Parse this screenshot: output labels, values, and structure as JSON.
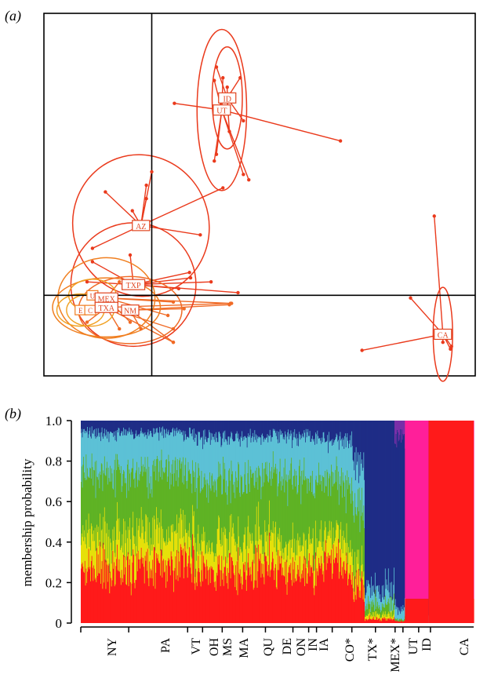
{
  "chart_data": [
    {
      "type": "scatter",
      "panel_label": "(a)",
      "xlim": [
        -1.0,
        3.0
      ],
      "ylim": [
        -0.6,
        2.1
      ],
      "grid": false,
      "axis_lines": {
        "x": 0,
        "y": 0
      },
      "group_color": "#ea3a1c",
      "groups": [
        {
          "name": "ID",
          "center": [
            0.7,
            1.47
          ],
          "ellipse": {
            "rx": 0.14,
            "ry": 0.38,
            "angle": 0
          },
          "points": [
            [
              0.6,
              1.7
            ],
            [
              0.82,
              1.62
            ],
            [
              0.7,
              1.55
            ],
            [
              0.58,
              1.38
            ],
            [
              0.85,
              1.3
            ],
            [
              0.72,
              1.22
            ]
          ]
        },
        {
          "name": "UT",
          "center": [
            0.65,
            1.38
          ],
          "ellipse": {
            "rx": 0.23,
            "ry": 0.6,
            "angle": 0
          },
          "points": [
            [
              0.21,
              1.43
            ],
            [
              0.58,
              1.6
            ],
            [
              0.66,
              1.62
            ],
            [
              1.75,
              1.15
            ],
            [
              0.58,
              1.0
            ],
            [
              0.85,
              0.9
            ],
            [
              0.9,
              0.86
            ],
            [
              0.6,
              1.05
            ]
          ]
        },
        {
          "name": "AZ",
          "center": [
            -0.1,
            0.52
          ],
          "ellipse": {
            "rx": 0.63,
            "ry": 0.53,
            "angle": -20
          },
          "points": [
            [
              -0.43,
              0.77
            ],
            [
              -0.05,
              0.82
            ],
            [
              -0.18,
              0.63
            ],
            [
              0.66,
              0.8
            ],
            [
              0.0,
              0.92
            ],
            [
              0.45,
              0.45
            ],
            [
              -0.05,
              0.72
            ],
            [
              -0.55,
              0.35
            ]
          ]
        },
        {
          "name": "TXP",
          "center": [
            -0.17,
            0.08
          ],
          "ellipse": {
            "rx": 0.58,
            "ry": 0.46,
            "angle": 0
          },
          "points": [
            [
              0.35,
              0.17
            ],
            [
              0.36,
              0.13
            ],
            [
              0.55,
              0.1
            ],
            [
              0.8,
              0.02
            ],
            [
              -0.55,
              0.25
            ],
            [
              0.25,
              0.05
            ],
            [
              -0.6,
              0.1
            ],
            [
              -0.2,
              0.3
            ]
          ]
        },
        {
          "name": "MEX",
          "center": [
            -0.42,
            -0.02
          ],
          "ellipse": {
            "rx": 0.45,
            "ry": 0.3,
            "angle": 0
          },
          "points": [
            [
              0.73,
              -0.06
            ],
            [
              0.2,
              -0.05
            ],
            [
              -0.2,
              -0.2
            ],
            [
              -0.55,
              -0.1
            ],
            [
              0.15,
              -0.15
            ],
            [
              -0.3,
              0.1
            ]
          ]
        },
        {
          "name": "TXA",
          "center": [
            -0.42,
            -0.09
          ],
          "ellipse": {
            "rx": 0.5,
            "ry": 0.22,
            "angle": 0
          },
          "points": [
            [
              0.74,
              -0.06
            ],
            [
              0.2,
              -0.25
            ],
            [
              0.2,
              -0.35
            ],
            [
              -0.3,
              -0.25
            ],
            [
              -0.6,
              -0.2
            ]
          ]
        },
        {
          "name": "NM",
          "center": [
            -0.2,
            -0.11
          ],
          "ellipse": {
            "rx": 0.48,
            "ry": 0.25,
            "angle": 0
          },
          "points": [
            [
              0.72,
              -0.07
            ],
            [
              0.2,
              -0.35
            ],
            [
              -0.1,
              -0.25
            ],
            [
              0.3,
              -0.1
            ]
          ]
        },
        {
          "name": "CA",
          "center": [
            2.7,
            -0.29
          ],
          "ellipse": {
            "rx": 0.09,
            "ry": 0.35,
            "angle": 0
          },
          "points": [
            [
              2.62,
              0.59
            ],
            [
              2.4,
              -0.02
            ],
            [
              1.95,
              -0.41
            ],
            [
              2.78,
              -0.38
            ],
            [
              2.77,
              -0.4
            ],
            [
              2.7,
              -0.35
            ]
          ]
        }
      ],
      "minor_groups": [
        "U",
        "E",
        "C"
      ],
      "minor_color": "#f07c20",
      "minor_ellipse_color": "#f0a020"
    },
    {
      "type": "area",
      "panel_label": "(b)",
      "ylabel": "membership probability",
      "ylim": [
        0,
        1
      ],
      "yticks": [
        "0",
        "0.2",
        "0.4",
        "0.6",
        "0.8",
        "1.0"
      ],
      "ytick_values": [
        0,
        0.2,
        0.4,
        0.6,
        0.8,
        1.0
      ],
      "categories": [
        "NY",
        "PA",
        "VT",
        "OH",
        "MS",
        "MA",
        "QU",
        "DE",
        "ON",
        "IN",
        "IA",
        "CO*",
        "TX*",
        "MEX*",
        "UT",
        "ID",
        "CA"
      ],
      "category_bounds": [
        0,
        0.14,
        0.29,
        0.345,
        0.396,
        0.44,
        0.494,
        0.58,
        0.622,
        0.664,
        0.691,
        0.721,
        0.798,
        0.876,
        0.947,
        0.985,
        1.02,
        1.2
      ],
      "cluster_colors": [
        "#ff1a1a",
        "#e6e00a",
        "#5fb325",
        "#5cc1d6",
        "#1f2d86",
        "#7a2fa8",
        "#ff1f9a"
      ],
      "columns_note": "individual membership bars, clusters ordered bottom to top",
      "group_profiles": [
        {
          "group": "NY",
          "props": [
            0.27,
            0.16,
            0.32,
            0.19,
            0.06,
            0,
            0
          ]
        },
        {
          "group": "PA",
          "props": [
            0.28,
            0.16,
            0.3,
            0.2,
            0.06,
            0,
            0
          ]
        },
        {
          "group": "VT",
          "props": [
            0.25,
            0.12,
            0.33,
            0.22,
            0.08,
            0,
            0
          ]
        },
        {
          "group": "OH",
          "props": [
            0.27,
            0.16,
            0.28,
            0.2,
            0.09,
            0,
            0
          ]
        },
        {
          "group": "MS",
          "props": [
            0.26,
            0.15,
            0.3,
            0.21,
            0.08,
            0,
            0
          ]
        },
        {
          "group": "MA",
          "props": [
            0.28,
            0.14,
            0.3,
            0.2,
            0.08,
            0,
            0
          ]
        },
        {
          "group": "QU",
          "props": [
            0.25,
            0.13,
            0.32,
            0.22,
            0.08,
            0,
            0
          ]
        },
        {
          "group": "DE",
          "props": [
            0.26,
            0.12,
            0.32,
            0.22,
            0.08,
            0,
            0
          ]
        },
        {
          "group": "ON",
          "props": [
            0.3,
            0.12,
            0.28,
            0.2,
            0.1,
            0,
            0
          ]
        },
        {
          "group": "IN",
          "props": [
            0.24,
            0.12,
            0.3,
            0.24,
            0.1,
            0,
            0
          ]
        },
        {
          "group": "IA",
          "props": [
            0.18,
            0.1,
            0.28,
            0.22,
            0.22,
            0,
            0
          ]
        },
        {
          "group": "CO*",
          "props": [
            0.02,
            0.02,
            0.05,
            0.08,
            0.83,
            0,
            0
          ]
        },
        {
          "group": "TX*",
          "props": [
            0.01,
            0.0,
            0.01,
            0.05,
            0.85,
            0.08,
            0
          ]
        },
        {
          "group": "MEX*",
          "props": [
            0.0,
            0.0,
            0.0,
            0.03,
            0.47,
            0.5,
            0
          ]
        },
        {
          "group": "UT",
          "props": [
            0.0,
            0.0,
            0.0,
            0.0,
            0.02,
            0.18,
            0.8
          ]
        },
        {
          "group": "ID",
          "props": [
            0.12,
            0.0,
            0.0,
            0.0,
            0.0,
            0.0,
            0.88
          ]
        },
        {
          "group": "CA",
          "props": [
            1.0,
            0,
            0,
            0,
            0,
            0,
            0
          ]
        }
      ]
    }
  ]
}
